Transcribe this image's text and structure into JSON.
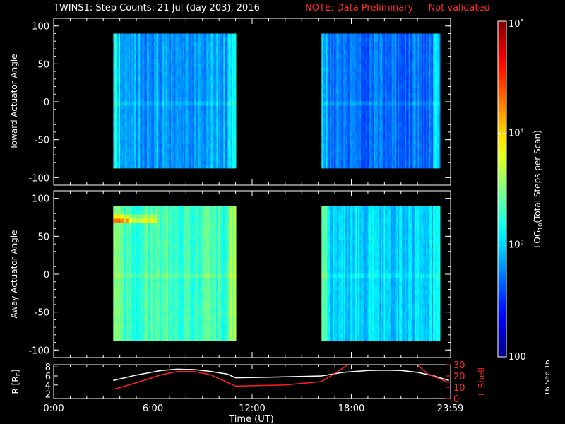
{
  "title": {
    "main": "TWINS1: Step Counts: 21 Jul (day 203), 2016",
    "note": "NOTE: Data Preliminary — Not validated"
  },
  "footer": {
    "date_stamp": "16 Sep 16"
  },
  "colors": {
    "background": "#000000",
    "axis": "#ffffff",
    "note": "#ff2a2a",
    "r_line": "#ffffff",
    "lshell_line": "#ff2020"
  },
  "chart_data": [
    {
      "type": "heatmap",
      "panel": "top",
      "ylabel": "Toward Actuator Angle",
      "ylim": [
        -110,
        110
      ],
      "yticks": [
        -100,
        -50,
        0,
        50,
        100
      ],
      "xlim": [
        0,
        24
      ],
      "segments": [
        {
          "t_start": 3.6,
          "t_end": 11.0,
          "angle_min": -88,
          "angle_max": 90,
          "log_level": 2.85
        },
        {
          "t_start": 16.2,
          "t_end": 23.3,
          "angle_min": -88,
          "angle_max": 90,
          "log_level": 2.7
        }
      ]
    },
    {
      "type": "heatmap",
      "panel": "middle",
      "ylabel": "Away Actuator Angle",
      "ylim": [
        -110,
        110
      ],
      "yticks": [
        -100,
        -50,
        0,
        50,
        100
      ],
      "xlim": [
        0,
        24
      ],
      "segments": [
        {
          "t_start": 3.6,
          "t_end": 11.0,
          "angle_min": -88,
          "angle_max": 90,
          "log_level": 3.3,
          "hot_band_angle": 72
        },
        {
          "t_start": 16.2,
          "t_end": 23.3,
          "angle_min": -88,
          "angle_max": 90,
          "log_level": 3.0
        }
      ]
    },
    {
      "type": "line",
      "panel": "bottom",
      "xlabel": "Time (UT)",
      "xlim": [
        0,
        24
      ],
      "xtick_labels": [
        "0:00",
        "6:00",
        "12:00",
        "18:00",
        "23:59"
      ],
      "xtick_values": [
        0,
        6,
        12,
        18,
        23.98
      ],
      "left_axis": {
        "label": "R [R",
        "label_sub": "E",
        "label_tail": "]",
        "ylim": [
          1,
          8.5
        ],
        "ticks": [
          2,
          4,
          6,
          8
        ]
      },
      "right_axis": {
        "label": "L Shell",
        "ylim": [
          0,
          30
        ],
        "ticks": [
          0,
          10,
          20,
          30
        ]
      },
      "series": [
        {
          "axis": "left",
          "color": "#ffffff",
          "x": [
            3.6,
            5.0,
            6.5,
            7.5,
            8.5,
            9.5,
            10.5,
            11.0,
            14.0,
            16.2,
            17.5,
            19.0,
            20.0,
            21.0,
            22.0,
            23.0,
            23.9
          ],
          "y": [
            5.0,
            6.2,
            7.2,
            7.5,
            7.4,
            7.0,
            6.4,
            5.6,
            5.8,
            6.0,
            6.8,
            7.2,
            7.3,
            7.2,
            6.8,
            6.0,
            5.0
          ]
        },
        {
          "axis": "right",
          "color": "#ff2020",
          "x": [
            3.6,
            5.0,
            6.5,
            7.5,
            8.5,
            9.5,
            11.0,
            14.0,
            16.2,
            17.5,
            17.9
          ],
          "y": [
            8,
            14,
            21,
            24,
            24,
            21,
            11,
            12,
            15,
            27,
            31
          ]
        },
        {
          "axis": "right",
          "color": "#ff2020",
          "x": [
            21.9,
            22.6,
            23.9
          ],
          "y": [
            31,
            22,
            14
          ]
        }
      ]
    }
  ],
  "colorbar": {
    "label": "LOG",
    "label_sub": "10",
    "label_tail": "(Total Steps per Scan)",
    "range_log": [
      2,
      5
    ],
    "tick_labels": [
      {
        "text": "100",
        "log": 2
      },
      {
        "text": "10",
        "sup": "3",
        "log": 3
      },
      {
        "text": "10",
        "sup": "4",
        "log": 4
      },
      {
        "text": "10",
        "sup": "5",
        "log": 5
      }
    ]
  }
}
